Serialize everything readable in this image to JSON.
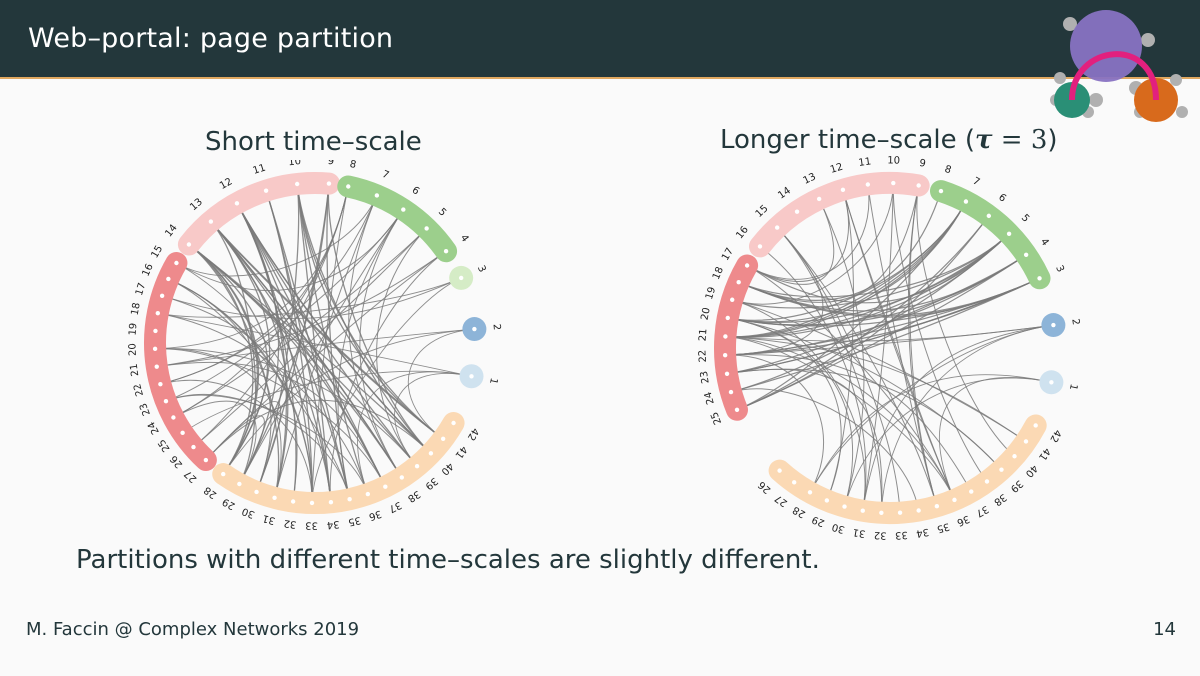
{
  "header": {
    "title": "Web–portal: page partition"
  },
  "panels": {
    "left": {
      "title": "Short time–scale",
      "groups": [
        {
          "color": "#ee8a8c",
          "nodes": [
            "27",
            "26",
            "25",
            "24",
            "23",
            "22",
            "21",
            "20",
            "19",
            "18",
            "17",
            "16",
            "15"
          ]
        },
        {
          "color": "#f8c9c8",
          "nodes": [
            "14",
            "13",
            "12",
            "11",
            "10",
            "9"
          ]
        },
        {
          "color": "#9ccf8c",
          "nodes": [
            "8",
            "7",
            "6",
            "5",
            "4"
          ]
        },
        {
          "color": "#d5ecc6",
          "nodes": [
            "3"
          ]
        },
        {
          "color": "#8db4d8",
          "nodes": [
            "2"
          ]
        },
        {
          "color": "#cfe2ef",
          "nodes": [
            "1"
          ]
        },
        {
          "color": "#fbd9b4",
          "nodes": [
            "42",
            "41",
            "40",
            "39",
            "38",
            "37",
            "36",
            "35",
            "34",
            "33",
            "32",
            "31",
            "30",
            "29",
            "28"
          ]
        }
      ]
    },
    "right": {
      "title_prefix": "Longer time–scale (",
      "tau_symbol": "τ",
      "tau_eq": " = 3",
      "title_suffix": ")",
      "groups": [
        {
          "color": "#ee8a8c",
          "nodes": [
            "25",
            "24",
            "23",
            "22",
            "21",
            "20",
            "19",
            "18",
            "17"
          ]
        },
        {
          "color": "#f8c9c8",
          "nodes": [
            "16",
            "15",
            "14",
            "13",
            "12",
            "11",
            "10",
            "9"
          ]
        },
        {
          "color": "#9ccf8c",
          "nodes": [
            "8",
            "7",
            "6",
            "5",
            "4",
            "3"
          ]
        },
        {
          "color": "#8db4d8",
          "nodes": [
            "2"
          ]
        },
        {
          "color": "#cfe2ef",
          "nodes": [
            "1"
          ]
        },
        {
          "color": "#fbd9b4",
          "nodes": [
            "42",
            "41",
            "40",
            "39",
            "38",
            "37",
            "36",
            "35",
            "34",
            "33",
            "32",
            "31",
            "30",
            "29",
            "28",
            "27",
            "26"
          ]
        }
      ]
    }
  },
  "caption": "Partitions with different time–scales are slightly different.",
  "footer": {
    "author": "M. Faccin @ Complex Networks 2019",
    "page": "14"
  },
  "colors": {
    "header_bg": "#23373b",
    "accent_rule": "#e0a860",
    "edge": "#7a7a7a"
  }
}
